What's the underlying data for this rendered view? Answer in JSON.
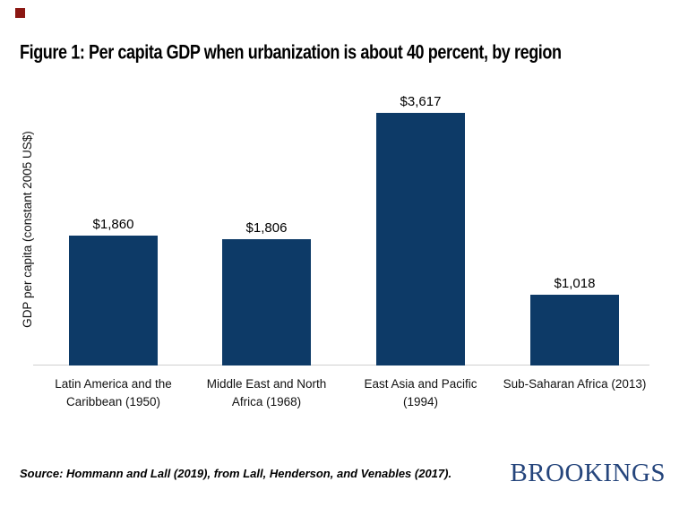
{
  "brand": {
    "red_square_color": "#8b1712",
    "logo_text": "BROOKINGS",
    "logo_color": "#25457c"
  },
  "chart_data": {
    "type": "bar",
    "title": "Figure 1: Per capita GDP when urbanization is about 40 percent, by region",
    "categories": [
      "Latin America and the Caribbean (1950)",
      "Middle East and North Africa (1968)",
      "East Asia and Pacific (1994)",
      "Sub-Saharan Africa (2013)"
    ],
    "category_label_lines": [
      [
        "Latin America and the",
        "Caribbean (1950)"
      ],
      [
        "Middle East and North",
        "Africa (1968)"
      ],
      [
        "East Asia and Pacific",
        "(1994)"
      ],
      [
        "Sub-Saharan Africa (2013)"
      ]
    ],
    "values": [
      1860,
      1806,
      3617,
      1018
    ],
    "value_labels": [
      "$1,860",
      "$1,806",
      "$3,617",
      "$1,018"
    ],
    "xlabel": "",
    "ylabel": "GDP per capita (constant 2005 US$)",
    "ylim": [
      0,
      4000
    ],
    "grid": false,
    "legend": "none",
    "bar_color": "#0d3a67",
    "axis_line_color": "#cfcfcf"
  },
  "source_note": "Source: Hommann and Lall (2019), from Lall, Henderson, and Venables (2017)."
}
